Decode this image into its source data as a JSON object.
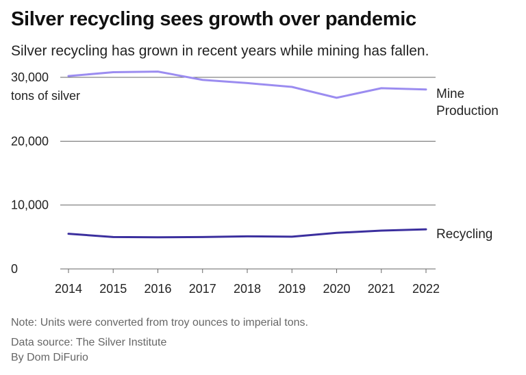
{
  "header": {
    "title": "Silver recycling sees growth over pandemic",
    "subtitle": "Silver recycling has grown in recent years while mining has fallen."
  },
  "footer": {
    "note": "Note: Units were converted from troy ounces to imperial tons.",
    "source": "Data source: The Silver Institute",
    "byline": "By Dom DiFurio"
  },
  "colors": {
    "mine_production": "#9b8cf0",
    "recycling": "#3b2f9e",
    "grid": "#666666"
  },
  "chart_data": {
    "type": "line",
    "title": "Silver recycling sees growth over pandemic",
    "subtitle": "Silver recycling has grown in recent years while mining has fallen.",
    "ylabel": "tons of silver",
    "xlabel": "",
    "x": [
      "2014",
      "2015",
      "2016",
      "2017",
      "2018",
      "2019",
      "2020",
      "2021",
      "2022"
    ],
    "ylim": [
      0,
      30000
    ],
    "yticks": [
      0,
      10000,
      20000,
      30000
    ],
    "ytick_labels": [
      "0",
      "10,000",
      "20,000",
      "30,000"
    ],
    "grid": true,
    "legend": "direct labels at right end of lines",
    "series": [
      {
        "name": "Mine Production",
        "label_lines": [
          "Mine",
          "Production"
        ],
        "values": [
          30200,
          30800,
          30900,
          29600,
          29100,
          28500,
          26800,
          28300,
          28100
        ]
      },
      {
        "name": "Recycling",
        "label_lines": [
          "Recycling"
        ],
        "values": [
          5500,
          5000,
          4950,
          5000,
          5100,
          5050,
          5650,
          6000,
          6200
        ]
      }
    ]
  }
}
